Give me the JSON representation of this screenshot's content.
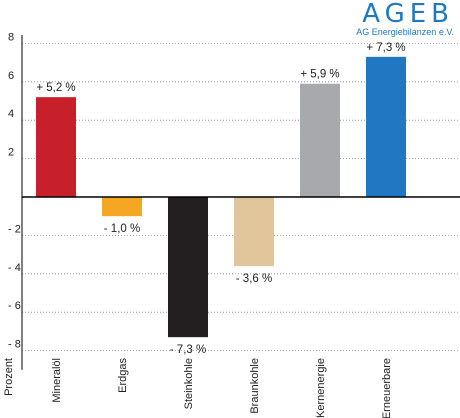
{
  "brand": {
    "logo": "AGEB",
    "subtitle": "AG Energiebilanzen e.V."
  },
  "chart_data": {
    "type": "bar",
    "ylabel": "Prozent",
    "ylim": [
      -9,
      10
    ],
    "yticks": [
      -8,
      -6,
      -4,
      -2,
      2,
      4,
      6,
      8
    ],
    "ytick_labels": [
      "- 8",
      "- 6",
      "- 4",
      "- 2",
      "2",
      "4",
      "6",
      "8"
    ],
    "grid": true,
    "categories": [
      "Mineralöl",
      "Erdgas",
      "Steinkohle",
      "Braunkohle",
      "Kernenergie",
      "Erneuerbare"
    ],
    "values": [
      5.2,
      -1.0,
      -7.3,
      -3.6,
      5.9,
      7.3
    ],
    "data_labels": [
      "+ 5,2 %",
      "- 1,0 %",
      "- 7,3 %",
      "- 3,6 %",
      "+ 5,9 %",
      "+ 7,3 %"
    ],
    "colors": [
      "#c8202b",
      "#f5a623",
      "#231f20",
      "#e2c69b",
      "#a8a9ad",
      "#1f78c1"
    ]
  }
}
